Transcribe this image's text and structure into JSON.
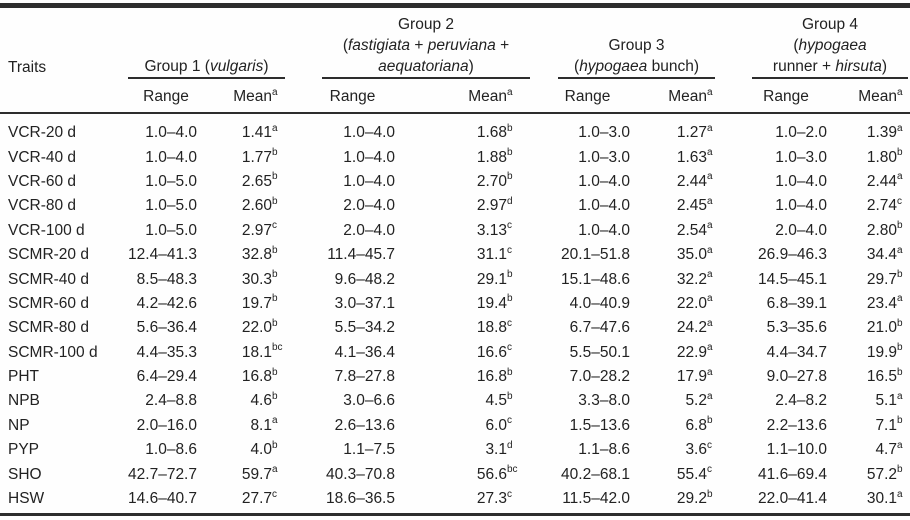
{
  "colors": {
    "rule": "#2d2d2d",
    "text": "#222222",
    "background": "#fefefe"
  },
  "table": {
    "traits_label": "Traits",
    "range_label": "Range",
    "mean_label": "Mean",
    "mean_sup": "a",
    "groups": [
      {
        "name_lines": [
          [
            {
              "t": "Group 1 ("
            },
            {
              "t": "vulgaris",
              "i": 1
            },
            {
              "t": ")"
            }
          ]
        ]
      },
      {
        "name_lines": [
          [
            {
              "t": "Group 2"
            }
          ],
          [
            {
              "t": "("
            },
            {
              "t": "fastigiata",
              "i": 1
            },
            {
              "t": " + "
            },
            {
              "t": "peruviana",
              "i": 1
            },
            {
              "t": " +"
            }
          ],
          [
            {
              "t": "aequatoriana",
              "i": 1
            },
            {
              "t": ")"
            }
          ]
        ]
      },
      {
        "name_lines": [
          [
            {
              "t": "Group 3"
            }
          ],
          [
            {
              "t": "("
            },
            {
              "t": "hypogaea",
              "i": 1
            },
            {
              "t": " bunch)"
            }
          ]
        ]
      },
      {
        "name_lines": [
          [
            {
              "t": "Group 4"
            }
          ],
          [
            {
              "t": "("
            },
            {
              "t": "hypogaea",
              "i": 1
            }
          ],
          [
            {
              "t": "runner + "
            },
            {
              "t": "hirsuta",
              "i": 1
            },
            {
              "t": ")"
            }
          ]
        ]
      }
    ],
    "rows": [
      {
        "trait": "VCR-20 d",
        "cells": [
          {
            "r": "1.0–4.0",
            "m": "1.41",
            "s": "a"
          },
          {
            "r": "1.0–4.0",
            "m": "1.68",
            "s": "b"
          },
          {
            "r": "1.0–3.0",
            "m": "1.27",
            "s": "a"
          },
          {
            "r": "1.0–2.0",
            "m": "1.39",
            "s": "a"
          }
        ]
      },
      {
        "trait": "VCR-40 d",
        "cells": [
          {
            "r": "1.0–4.0",
            "m": "1.77",
            "s": "b"
          },
          {
            "r": "1.0–4.0",
            "m": "1.88",
            "s": "b"
          },
          {
            "r": "1.0–3.0",
            "m": "1.63",
            "s": "a"
          },
          {
            "r": "1.0–3.0",
            "m": "1.80",
            "s": "b"
          }
        ]
      },
      {
        "trait": "VCR-60 d",
        "cells": [
          {
            "r": "1.0–5.0",
            "m": "2.65",
            "s": "b"
          },
          {
            "r": "1.0–4.0",
            "m": "2.70",
            "s": "b"
          },
          {
            "r": "1.0–4.0",
            "m": "2.44",
            "s": "a"
          },
          {
            "r": "1.0–4.0",
            "m": "2.44",
            "s": "a"
          }
        ]
      },
      {
        "trait": "VCR-80 d",
        "cells": [
          {
            "r": "1.0–5.0",
            "m": "2.60",
            "s": "b"
          },
          {
            "r": "2.0–4.0",
            "m": "2.97",
            "s": "d"
          },
          {
            "r": "1.0–4.0",
            "m": "2.45",
            "s": "a"
          },
          {
            "r": "1.0–4.0",
            "m": "2.74",
            "s": "c"
          }
        ]
      },
      {
        "trait": "VCR-100 d",
        "cells": [
          {
            "r": "1.0–5.0",
            "m": "2.97",
            "s": "c"
          },
          {
            "r": "2.0–4.0",
            "m": "3.13",
            "s": "c"
          },
          {
            "r": "1.0–4.0",
            "m": "2.54",
            "s": "a"
          },
          {
            "r": "2.0–4.0",
            "m": "2.80",
            "s": "b"
          }
        ]
      },
      {
        "trait": "SCMR-20 d",
        "cells": [
          {
            "r": "12.4–41.3",
            "m": "32.8",
            "s": "b"
          },
          {
            "r": "11.4–45.7",
            "m": "31.1",
            "s": "c"
          },
          {
            "r": "20.1–51.8",
            "m": "35.0",
            "s": "a"
          },
          {
            "r": "26.9–46.3",
            "m": "34.4",
            "s": "a"
          }
        ]
      },
      {
        "trait": "SCMR-40 d",
        "cells": [
          {
            "r": "8.5–48.3",
            "m": "30.3",
            "s": "b"
          },
          {
            "r": "9.6–48.2",
            "m": "29.1",
            "s": "b"
          },
          {
            "r": "15.1–48.6",
            "m": "32.2",
            "s": "a"
          },
          {
            "r": "14.5–45.1",
            "m": "29.7",
            "s": "b"
          }
        ]
      },
      {
        "trait": "SCMR-60 d",
        "cells": [
          {
            "r": "4.2–42.6",
            "m": "19.7",
            "s": "b"
          },
          {
            "r": "3.0–37.1",
            "m": "19.4",
            "s": "b"
          },
          {
            "r": "4.0–40.9",
            "m": "22.0",
            "s": "a"
          },
          {
            "r": "6.8–39.1",
            "m": "23.4",
            "s": "a"
          }
        ]
      },
      {
        "trait": "SCMR-80 d",
        "cells": [
          {
            "r": "5.6–36.4",
            "m": "22.0",
            "s": "b"
          },
          {
            "r": "5.5–34.2",
            "m": "18.8",
            "s": "c"
          },
          {
            "r": "6.7–47.6",
            "m": "24.2",
            "s": "a"
          },
          {
            "r": "5.3–35.6",
            "m": "21.0",
            "s": "b"
          }
        ]
      },
      {
        "trait": "SCMR-100 d",
        "cells": [
          {
            "r": "4.4–35.3",
            "m": "18.1",
            "s": "bc"
          },
          {
            "r": "4.1–36.4",
            "m": "16.6",
            "s": "c"
          },
          {
            "r": "5.5–50.1",
            "m": "22.9",
            "s": "a"
          },
          {
            "r": "4.4–34.7",
            "m": "19.9",
            "s": "b"
          }
        ]
      },
      {
        "trait": "PHT",
        "cells": [
          {
            "r": "6.4–29.4",
            "m": "16.8",
            "s": "b"
          },
          {
            "r": "7.8–27.8",
            "m": "16.8",
            "s": "b"
          },
          {
            "r": "7.0–28.2",
            "m": "17.9",
            "s": "a"
          },
          {
            "r": "9.0–27.8",
            "m": "16.5",
            "s": "b"
          }
        ]
      },
      {
        "trait": "NPB",
        "cells": [
          {
            "r": "2.4–8.8",
            "m": "4.6",
            "s": "b"
          },
          {
            "r": "3.0–6.6",
            "m": "4.5",
            "s": "b"
          },
          {
            "r": "3.3–8.0",
            "m": "5.2",
            "s": "a"
          },
          {
            "r": "2.4–8.2",
            "m": "5.1",
            "s": "a"
          }
        ]
      },
      {
        "trait": "NP",
        "cells": [
          {
            "r": "2.0–16.0",
            "m": "8.1",
            "s": "a"
          },
          {
            "r": "2.6–13.6",
            "m": "6.0",
            "s": "c"
          },
          {
            "r": "1.5–13.6",
            "m": "6.8",
            "s": "b"
          },
          {
            "r": "2.2–13.6",
            "m": "7.1",
            "s": "b"
          }
        ]
      },
      {
        "trait": "PYP",
        "cells": [
          {
            "r": "1.0–8.6",
            "m": "4.0",
            "s": "b"
          },
          {
            "r": "1.1–7.5",
            "m": "3.1",
            "s": "d"
          },
          {
            "r": "1.1–8.6",
            "m": "3.6",
            "s": "c"
          },
          {
            "r": "1.1–10.0",
            "m": "4.7",
            "s": "a"
          }
        ]
      },
      {
        "trait": "SHO",
        "cells": [
          {
            "r": "42.7–72.7",
            "m": "59.7",
            "s": "a"
          },
          {
            "r": "40.3–70.8",
            "m": "56.6",
            "s": "bc"
          },
          {
            "r": "40.2–68.1",
            "m": "55.4",
            "s": "c"
          },
          {
            "r": "41.6–69.4",
            "m": "57.2",
            "s": "b"
          }
        ]
      },
      {
        "trait": "HSW",
        "cells": [
          {
            "r": "14.6–40.7",
            "m": "27.7",
            "s": "c"
          },
          {
            "r": "18.6–36.5",
            "m": "27.3",
            "s": "c"
          },
          {
            "r": "11.5–42.0",
            "m": "29.2",
            "s": "b"
          },
          {
            "r": "22.0–41.4",
            "m": "30.1",
            "s": "a"
          }
        ]
      }
    ]
  }
}
